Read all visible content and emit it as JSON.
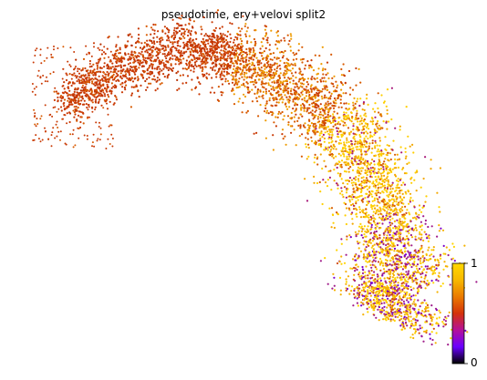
{
  "chart_data": {
    "type": "scatter",
    "title": "pseudotime, ery+velovi split2",
    "xlabel": "",
    "ylabel": "",
    "grid": false,
    "legend": "none",
    "colormap": "gnuplot",
    "colorbar": {
      "min_label": "0",
      "max_label": "1",
      "range": [
        0,
        1
      ],
      "stops": [
        "#000000",
        "#6a00ff",
        "#b4109a",
        "#d4320a",
        "#ea7a00",
        "#f7b800",
        "#ffd800"
      ]
    },
    "marker_color_range": [
      "#7a00c8",
      "#ffd400"
    ]
  }
}
